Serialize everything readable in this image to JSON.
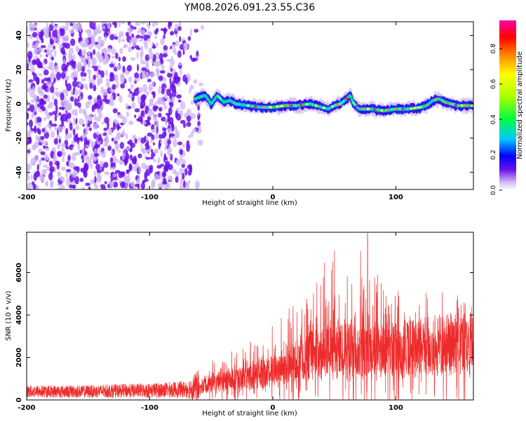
{
  "title": "YM08.2026.091.23.55.C36",
  "colors": {
    "snr_line": "#ee2b2b",
    "axis": "#000000",
    "noise_dark": "#6a12e8",
    "noise_light": "#cdb4f4"
  },
  "colorbar": {
    "label": "Normalized spectral amplitude",
    "ticks": [
      "0.0",
      "0.2",
      "0.4",
      "0.6",
      "0.8"
    ],
    "tick_values": [
      0.0,
      0.2,
      0.4,
      0.6,
      0.8
    ],
    "range": [
      0,
      0.96
    ]
  },
  "chart_data": [
    {
      "type": "heatmap",
      "title": "YM08.2026.091.23.55.C36",
      "xlabel": "Height of straight line (km)",
      "ylabel": "Frequency (Hz)",
      "xlim": [
        -200,
        163
      ],
      "ylim": [
        -50,
        48
      ],
      "x_ticks": [
        -200,
        -100,
        0,
        100
      ],
      "x_tick_labels": [
        "-200",
        "-100",
        "0",
        "100"
      ],
      "y_ticks": [
        -40,
        -20,
        0,
        20,
        40
      ],
      "y_tick_labels": [
        "-40",
        "-20",
        "0",
        "20",
        "40"
      ],
      "noise_region_x": [
        -200,
        -60
      ],
      "signal_start_x": -63,
      "signal_track": {
        "x": [
          -63,
          -55,
          -50,
          -45,
          -40,
          -35,
          -30,
          -20,
          -10,
          0,
          10,
          20,
          30,
          40,
          45,
          50,
          55,
          60,
          63,
          65,
          70,
          80,
          90,
          100,
          110,
          120,
          125,
          130,
          135,
          140,
          150,
          163
        ],
        "y": [
          3,
          5,
          0,
          5,
          1,
          2,
          0,
          -1,
          -2,
          -2,
          -1,
          -1,
          0,
          -2,
          -3,
          -1,
          0,
          3,
          5,
          1,
          -3,
          -3,
          -4,
          -3,
          -3,
          -2,
          -1,
          2,
          3,
          1,
          -1,
          -1
        ]
      }
    },
    {
      "type": "line",
      "xlabel": "Height of straight line (km)",
      "ylabel": "SNR (10 * v/v)",
      "xlim": [
        -200,
        163
      ],
      "ylim": [
        0,
        7900
      ],
      "x_ticks": [
        -200,
        -100,
        0,
        100
      ],
      "x_tick_labels": [
        "-200",
        "-100",
        "0",
        "100"
      ],
      "y_ticks": [
        0,
        2000,
        4000,
        6000
      ],
      "y_tick_labels": [
        "0",
        "2000",
        "4000",
        "6000"
      ],
      "series": [
        {
          "name": "SNR",
          "envelope_x": [
            -200,
            -150,
            -100,
            -70,
            -60,
            -55,
            -40,
            -20,
            0,
            10,
            20,
            30,
            40,
            50,
            60,
            70,
            80,
            100,
            120,
            140,
            163
          ],
          "envelope_base": [
            400,
            400,
            450,
            500,
            650,
            900,
            1100,
            1300,
            1700,
            2000,
            2300,
            2600,
            2700,
            2800,
            2900,
            2800,
            2800,
            3000,
            3100,
            3300,
            3300
          ],
          "envelope_peak": [
            300,
            300,
            350,
            400,
            800,
            1500,
            2000,
            2600,
            3300,
            4000,
            4800,
            5600,
            6300,
            6800,
            7000,
            6500,
            6200,
            5300,
            4800,
            4600,
            4300
          ]
        }
      ]
    }
  ]
}
